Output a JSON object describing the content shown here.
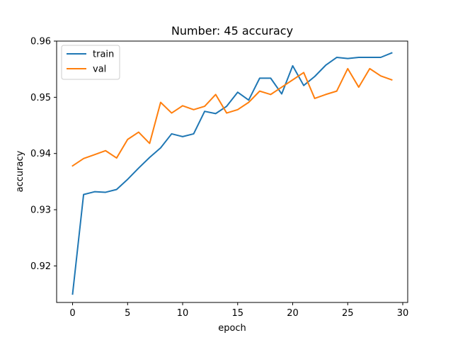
{
  "chart_data": {
    "type": "line",
    "title": "Number: 45 accuracy",
    "xlabel": "epoch",
    "ylabel": "accuracy",
    "xlim": [
      -1.45,
      30.45
    ],
    "ylim": [
      0.9135,
      0.96
    ],
    "x_ticks": [
      0,
      5,
      10,
      15,
      20,
      25,
      30
    ],
    "y_ticks": [
      0.92,
      0.93,
      0.94,
      0.95,
      0.96
    ],
    "y_tick_labels": [
      "0.92",
      "0.93",
      "0.94",
      "0.95",
      "0.96"
    ],
    "grid": false,
    "legend_position": "upper-left",
    "x": [
      0,
      1,
      2,
      3,
      4,
      5,
      6,
      7,
      8,
      9,
      10,
      11,
      12,
      13,
      14,
      15,
      16,
      17,
      18,
      19,
      20,
      21,
      22,
      23,
      24,
      25,
      26,
      27,
      28,
      29
    ],
    "series": [
      {
        "name": "train",
        "color": "#1f77b4",
        "values": [
          0.915,
          0.9327,
          0.9332,
          0.9331,
          0.9336,
          0.9354,
          0.9374,
          0.9393,
          0.941,
          0.9435,
          0.943,
          0.9435,
          0.9475,
          0.9471,
          0.9484,
          0.9509,
          0.9495,
          0.9534,
          0.9534,
          0.9506,
          0.9556,
          0.9521,
          0.9537,
          0.9557,
          0.9571,
          0.9569,
          0.9571,
          0.9571,
          0.9571,
          0.9579
        ]
      },
      {
        "name": "val",
        "color": "#ff7f0e",
        "values": [
          0.9378,
          0.9391,
          0.9398,
          0.9405,
          0.9392,
          0.9425,
          0.9438,
          0.9418,
          0.9491,
          0.9472,
          0.9485,
          0.9478,
          0.9484,
          0.9505,
          0.9472,
          0.9478,
          0.9491,
          0.9511,
          0.9505,
          0.9518,
          0.9531,
          0.9544,
          0.9498,
          0.9505,
          0.9511,
          0.9551,
          0.9518,
          0.9551,
          0.9538,
          0.9531
        ]
      }
    ]
  }
}
